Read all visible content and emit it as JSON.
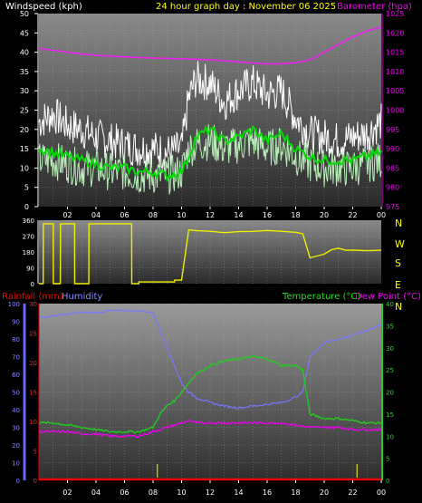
{
  "header": {
    "wind_title": "Windspeed (kph)",
    "main_title": "24 hour graph day : November 06 2025",
    "baro_title": "Barometer (hpa)"
  },
  "panel3_titles": {
    "rain": "Rainfall (mm)",
    "humidity": "Humidity",
    "temperature": "Temperature (°C)",
    "dewpoint": "Dew Point (°C)"
  },
  "colors": {
    "wind_gust": "#ffffff",
    "wind_speed": "#b9f0b9",
    "wind_avg": "#00dd00",
    "barometer": "#ee22ee",
    "direction": "#eeee00",
    "temperature": "#22cc22",
    "dewpoint": "#ee00ee",
    "humidity": "#7777ff",
    "rain": "#ee0000",
    "rain_tick": "#dddd00"
  },
  "chart_data": [
    {
      "type": "line",
      "id": "wind-baro",
      "x_ticks": [
        "02",
        "04",
        "06",
        "08",
        "10",
        "12",
        "14",
        "16",
        "18",
        "20",
        "22",
        "00"
      ],
      "y_left": {
        "label": "Windspeed (kph)",
        "ticks": [
          "0",
          "5",
          "10",
          "15",
          "20",
          "25",
          "30",
          "35",
          "40",
          "45",
          "50"
        ],
        "ylim": [
          0,
          50
        ]
      },
      "y_right": {
        "label": "Barometer (hpa)",
        "ticks": [
          "975",
          "980",
          "985",
          "990",
          "995",
          "1000",
          "1005",
          "1010",
          "1015",
          "1020",
          "1025"
        ],
        "ylim": [
          975,
          1025
        ]
      },
      "series": [
        {
          "name": "gust",
          "hours": [
            0,
            1,
            2,
            3,
            4,
            5,
            6,
            7,
            8,
            9,
            10,
            10.5,
            11,
            12,
            13,
            14,
            15,
            16,
            17,
            18,
            19,
            20,
            21,
            22,
            23,
            24
          ],
          "values": [
            22,
            24,
            21,
            20,
            18,
            17,
            16,
            15,
            15,
            14,
            15,
            28,
            33,
            32,
            27,
            30,
            32,
            29,
            30,
            23,
            19,
            18,
            17,
            18,
            19,
            22
          ]
        },
        {
          "name": "speed",
          "hours": [
            0,
            1,
            2,
            3,
            4,
            5,
            6,
            7,
            8,
            9,
            10,
            10.5,
            11,
            12,
            13,
            14,
            15,
            16,
            17,
            18,
            19,
            20,
            21,
            22,
            23,
            24
          ],
          "values": [
            12,
            12,
            11,
            10,
            10,
            9,
            9,
            8,
            8,
            8,
            9,
            15,
            16,
            17,
            15,
            16,
            17,
            15,
            16,
            13,
            11,
            10,
            10,
            10,
            11,
            12
          ]
        },
        {
          "name": "average",
          "hours": [
            0,
            1,
            2,
            3,
            4,
            5,
            6,
            7,
            8,
            9,
            10,
            10.5,
            11,
            12,
            13,
            14,
            15,
            16,
            17,
            18,
            19,
            20,
            21,
            22,
            23,
            24
          ],
          "values": [
            15,
            14,
            13,
            12,
            11,
            10,
            10,
            9,
            9,
            8,
            9,
            13,
            18,
            20,
            17,
            18,
            20,
            17,
            19,
            15,
            13,
            12,
            12,
            12,
            13,
            14
          ]
        },
        {
          "name": "barometer",
          "hours": [
            0,
            1,
            2,
            3,
            4,
            5,
            6,
            7,
            8,
            9,
            10,
            11,
            12,
            13,
            14,
            15,
            16,
            17,
            18,
            19,
            20,
            21,
            22,
            23,
            24
          ],
          "values": [
            1016,
            1015.5,
            1015,
            1014.5,
            1014.2,
            1014,
            1013.8,
            1013.6,
            1013.5,
            1013.4,
            1013.3,
            1013.2,
            1013,
            1012.8,
            1012.5,
            1012.2,
            1012,
            1012,
            1012.3,
            1013,
            1015,
            1017,
            1019,
            1020.5,
            1021.5
          ]
        }
      ]
    },
    {
      "type": "scatter",
      "id": "wind-direction",
      "x_ticks": [
        "02",
        "04",
        "06",
        "08",
        "10",
        "12",
        "14",
        "16",
        "18",
        "20",
        "22",
        "00"
      ],
      "y_left": {
        "ticks": [
          "0",
          "90",
          "180",
          "270",
          "360"
        ],
        "ylim": [
          0,
          360
        ]
      },
      "y_right": {
        "ticks": [
          "N",
          "W",
          "S",
          "E",
          "N"
        ]
      },
      "series": [
        {
          "name": "direction",
          "hours": [
            0,
            0.3,
            0.31,
            1.0,
            1.01,
            1.5,
            1.51,
            2.5,
            2.51,
            3.5,
            3.51,
            4.0,
            4.01,
            6.5,
            6.51,
            7.0,
            7.01,
            9.5,
            9.51,
            10.0,
            10.5,
            11,
            12,
            13,
            14,
            15,
            16,
            17,
            18,
            18.5,
            19,
            19.5,
            20,
            20.5,
            21,
            21.5,
            22,
            23,
            24
          ],
          "values": [
            0,
            0,
            340,
            340,
            0,
            0,
            340,
            340,
            0,
            0,
            340,
            340,
            340,
            340,
            0,
            0,
            10,
            10,
            20,
            20,
            305,
            300,
            295,
            290,
            295,
            300,
            305,
            300,
            295,
            280,
            150,
            160,
            170,
            190,
            200,
            190,
            190,
            190,
            190
          ]
        }
      ]
    },
    {
      "type": "line",
      "id": "temp-hum-rain",
      "x_ticks": [
        "02",
        "04",
        "06",
        "08",
        "10",
        "12",
        "14",
        "16",
        "18",
        "20",
        "22",
        "00"
      ],
      "y_left_humidity": {
        "label": "Humidity",
        "ticks": [
          "0",
          "10",
          "20",
          "30",
          "40",
          "50",
          "60",
          "70",
          "80",
          "90",
          "100"
        ],
        "ylim": [
          0,
          100
        ]
      },
      "y_left_rain": {
        "label": "Rainfall (mm)",
        "ticks": [
          "0",
          "5",
          "10",
          "15",
          "20",
          "25",
          "30"
        ],
        "ylim": [
          0,
          30
        ]
      },
      "y_right": {
        "label": "Temperature (°C)",
        "ticks": [
          "0",
          "5",
          "10",
          "15",
          "20",
          "25",
          "30",
          "35",
          "40"
        ],
        "ylim": [
          0,
          40
        ]
      },
      "series": [
        {
          "name": "humidity",
          "hours": [
            0,
            1,
            2,
            3,
            4,
            5,
            6,
            7,
            8,
            8.5,
            9,
            9.5,
            10,
            10.5,
            11,
            12,
            13,
            14,
            15,
            16,
            17,
            18,
            18.5,
            19,
            20,
            21,
            22,
            23,
            24
          ],
          "values": [
            92,
            93,
            94,
            95,
            95,
            96,
            96,
            96,
            95,
            85,
            75,
            65,
            55,
            50,
            47,
            44,
            42,
            41,
            42,
            43,
            44,
            47,
            50,
            70,
            78,
            80,
            82,
            85,
            88
          ]
        },
        {
          "name": "temperature",
          "hours": [
            0,
            1,
            2,
            3,
            4,
            5,
            6,
            7,
            8,
            8.5,
            9,
            9.5,
            10,
            10.5,
            11,
            12,
            13,
            14,
            15,
            16,
            17,
            18,
            18.5,
            19,
            20,
            21,
            22,
            23,
            24
          ],
          "values": [
            13,
            13,
            12.5,
            12,
            11.5,
            11,
            11,
            11,
            12,
            15,
            17,
            18,
            20,
            22,
            24,
            26,
            27,
            27.5,
            28,
            27.5,
            26,
            26,
            25,
            15,
            14,
            14,
            13.5,
            13,
            13
          ]
        },
        {
          "name": "dewpoint",
          "hours": [
            0,
            1,
            2,
            3,
            4,
            5,
            6,
            7,
            8,
            9,
            10,
            10.5,
            11,
            12,
            13,
            14,
            15,
            16,
            17,
            18,
            19,
            20,
            21,
            22,
            23,
            24
          ],
          "values": [
            11,
            11,
            11,
            10.5,
            10.5,
            10,
            10,
            10,
            11,
            12,
            13,
            13.5,
            13,
            13,
            13,
            13,
            13,
            13,
            13,
            12.5,
            12,
            12,
            12,
            11.5,
            11.5,
            11.5
          ]
        },
        {
          "name": "rain",
          "hours": [
            0,
            24
          ],
          "values": [
            0,
            0
          ]
        }
      ],
      "rain_ticks_hours": [
        8.3,
        22.3
      ]
    }
  ]
}
